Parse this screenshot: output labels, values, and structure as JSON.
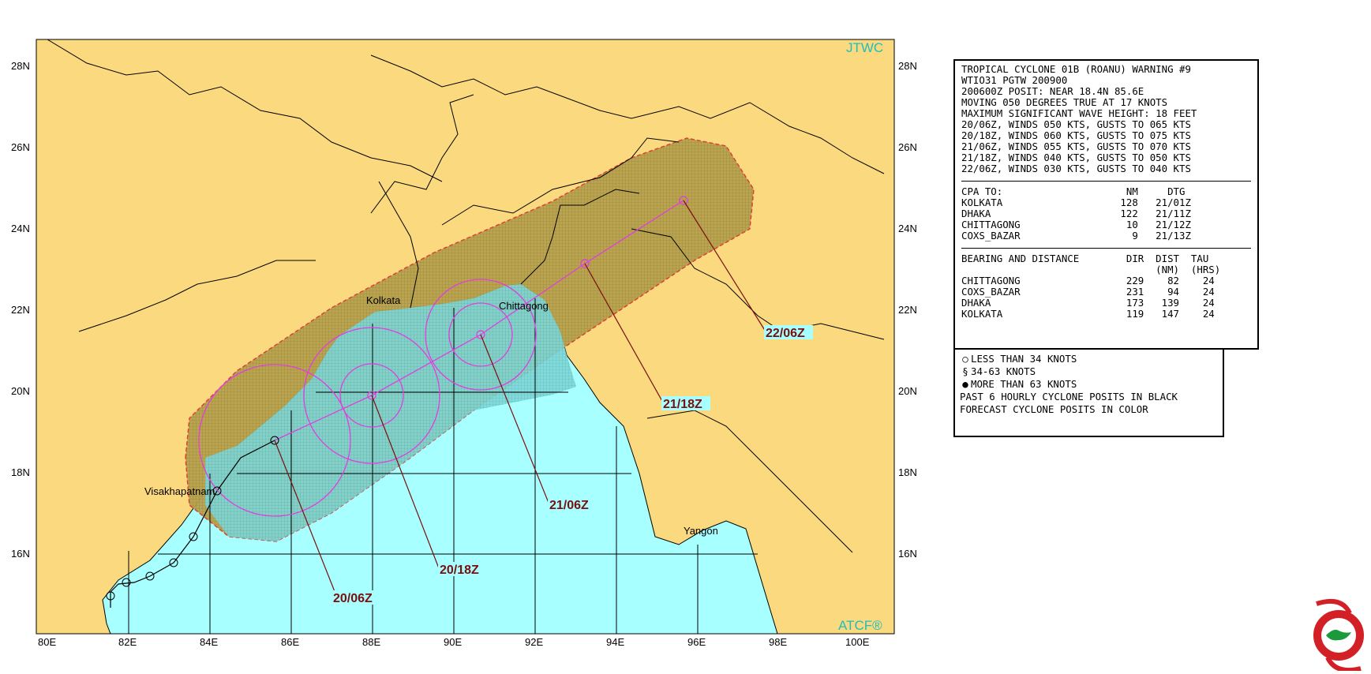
{
  "map": {
    "lon_labels": [
      "80E",
      "82E",
      "84E",
      "86E",
      "88E",
      "90E",
      "92E",
      "94E",
      "96E",
      "98E",
      "100E"
    ],
    "lat_labels": [
      "28N",
      "26N",
      "24N",
      "22N",
      "20N",
      "18N",
      "16N"
    ],
    "brand_top": "JTWC",
    "brand_bottom": "ATCF®",
    "places": [
      "Kolkata",
      "Chittagong",
      "Visakhapatnam",
      "Yangon"
    ],
    "forecast_labels": [
      "20/06Z",
      "20/18Z",
      "21/06Z",
      "21/18Z",
      "22/06Z"
    ],
    "colors": {
      "land": "#fad97f",
      "sea": "#a8ffff",
      "danger": "#b7a24d",
      "track": "#e03fe0",
      "label": "#7a0f0f",
      "brand": "#22bdbd"
    }
  },
  "warning": {
    "line1": "TROPICAL CYCLONE 01B (ROANU) WARNING #9",
    "line2": "WTIO31 PGTW 200900",
    "line3": "200600Z POSIT: NEAR 18.4N 85.6E",
    "line4": "MOVING 050 DEGREES TRUE AT 17 KNOTS",
    "line5": "MAXIMUM SIGNIFICANT WAVE HEIGHT: 18 FEET",
    "winds": [
      "20/06Z, WINDS 050 KTS, GUSTS TO 065 KTS",
      "20/18Z, WINDS 060 KTS, GUSTS TO 075 KTS",
      "21/06Z, WINDS 055 KTS, GUSTS TO 070 KTS",
      "21/18Z, WINDS 040 KTS, GUSTS TO 050 KTS",
      "22/06Z, WINDS 030 KTS, GUSTS TO 040 KTS"
    ],
    "cpa_header": "CPA TO:                     NM     DTG",
    "cpa_rows": [
      "KOLKATA                    128   21/01Z",
      "DHAKA                      122   21/11Z",
      "CHITTAGONG                  10   21/12Z",
      "COXS_BAZAR                   9   21/13Z"
    ],
    "bd_header1": "BEARING AND DISTANCE        DIR  DIST  TAU",
    "bd_header2": "                                 (NM)  (HRS)",
    "bd_rows": [
      "CHITTAGONG                  229    82    24",
      "COXS_BAZAR                  231    94    24",
      "DHAKA                       173   139    24",
      "KOLKATA                     119   147    24"
    ]
  },
  "legend": {
    "items": [
      "LESS THAN 34 KNOTS",
      "34-63 KNOTS",
      "MORE THAN 63 KNOTS"
    ],
    "note1": "PAST 6 HOURLY CYCLONE POSITS IN BLACK",
    "note2": "FORECAST CYCLONE POSITS IN COLOR"
  }
}
